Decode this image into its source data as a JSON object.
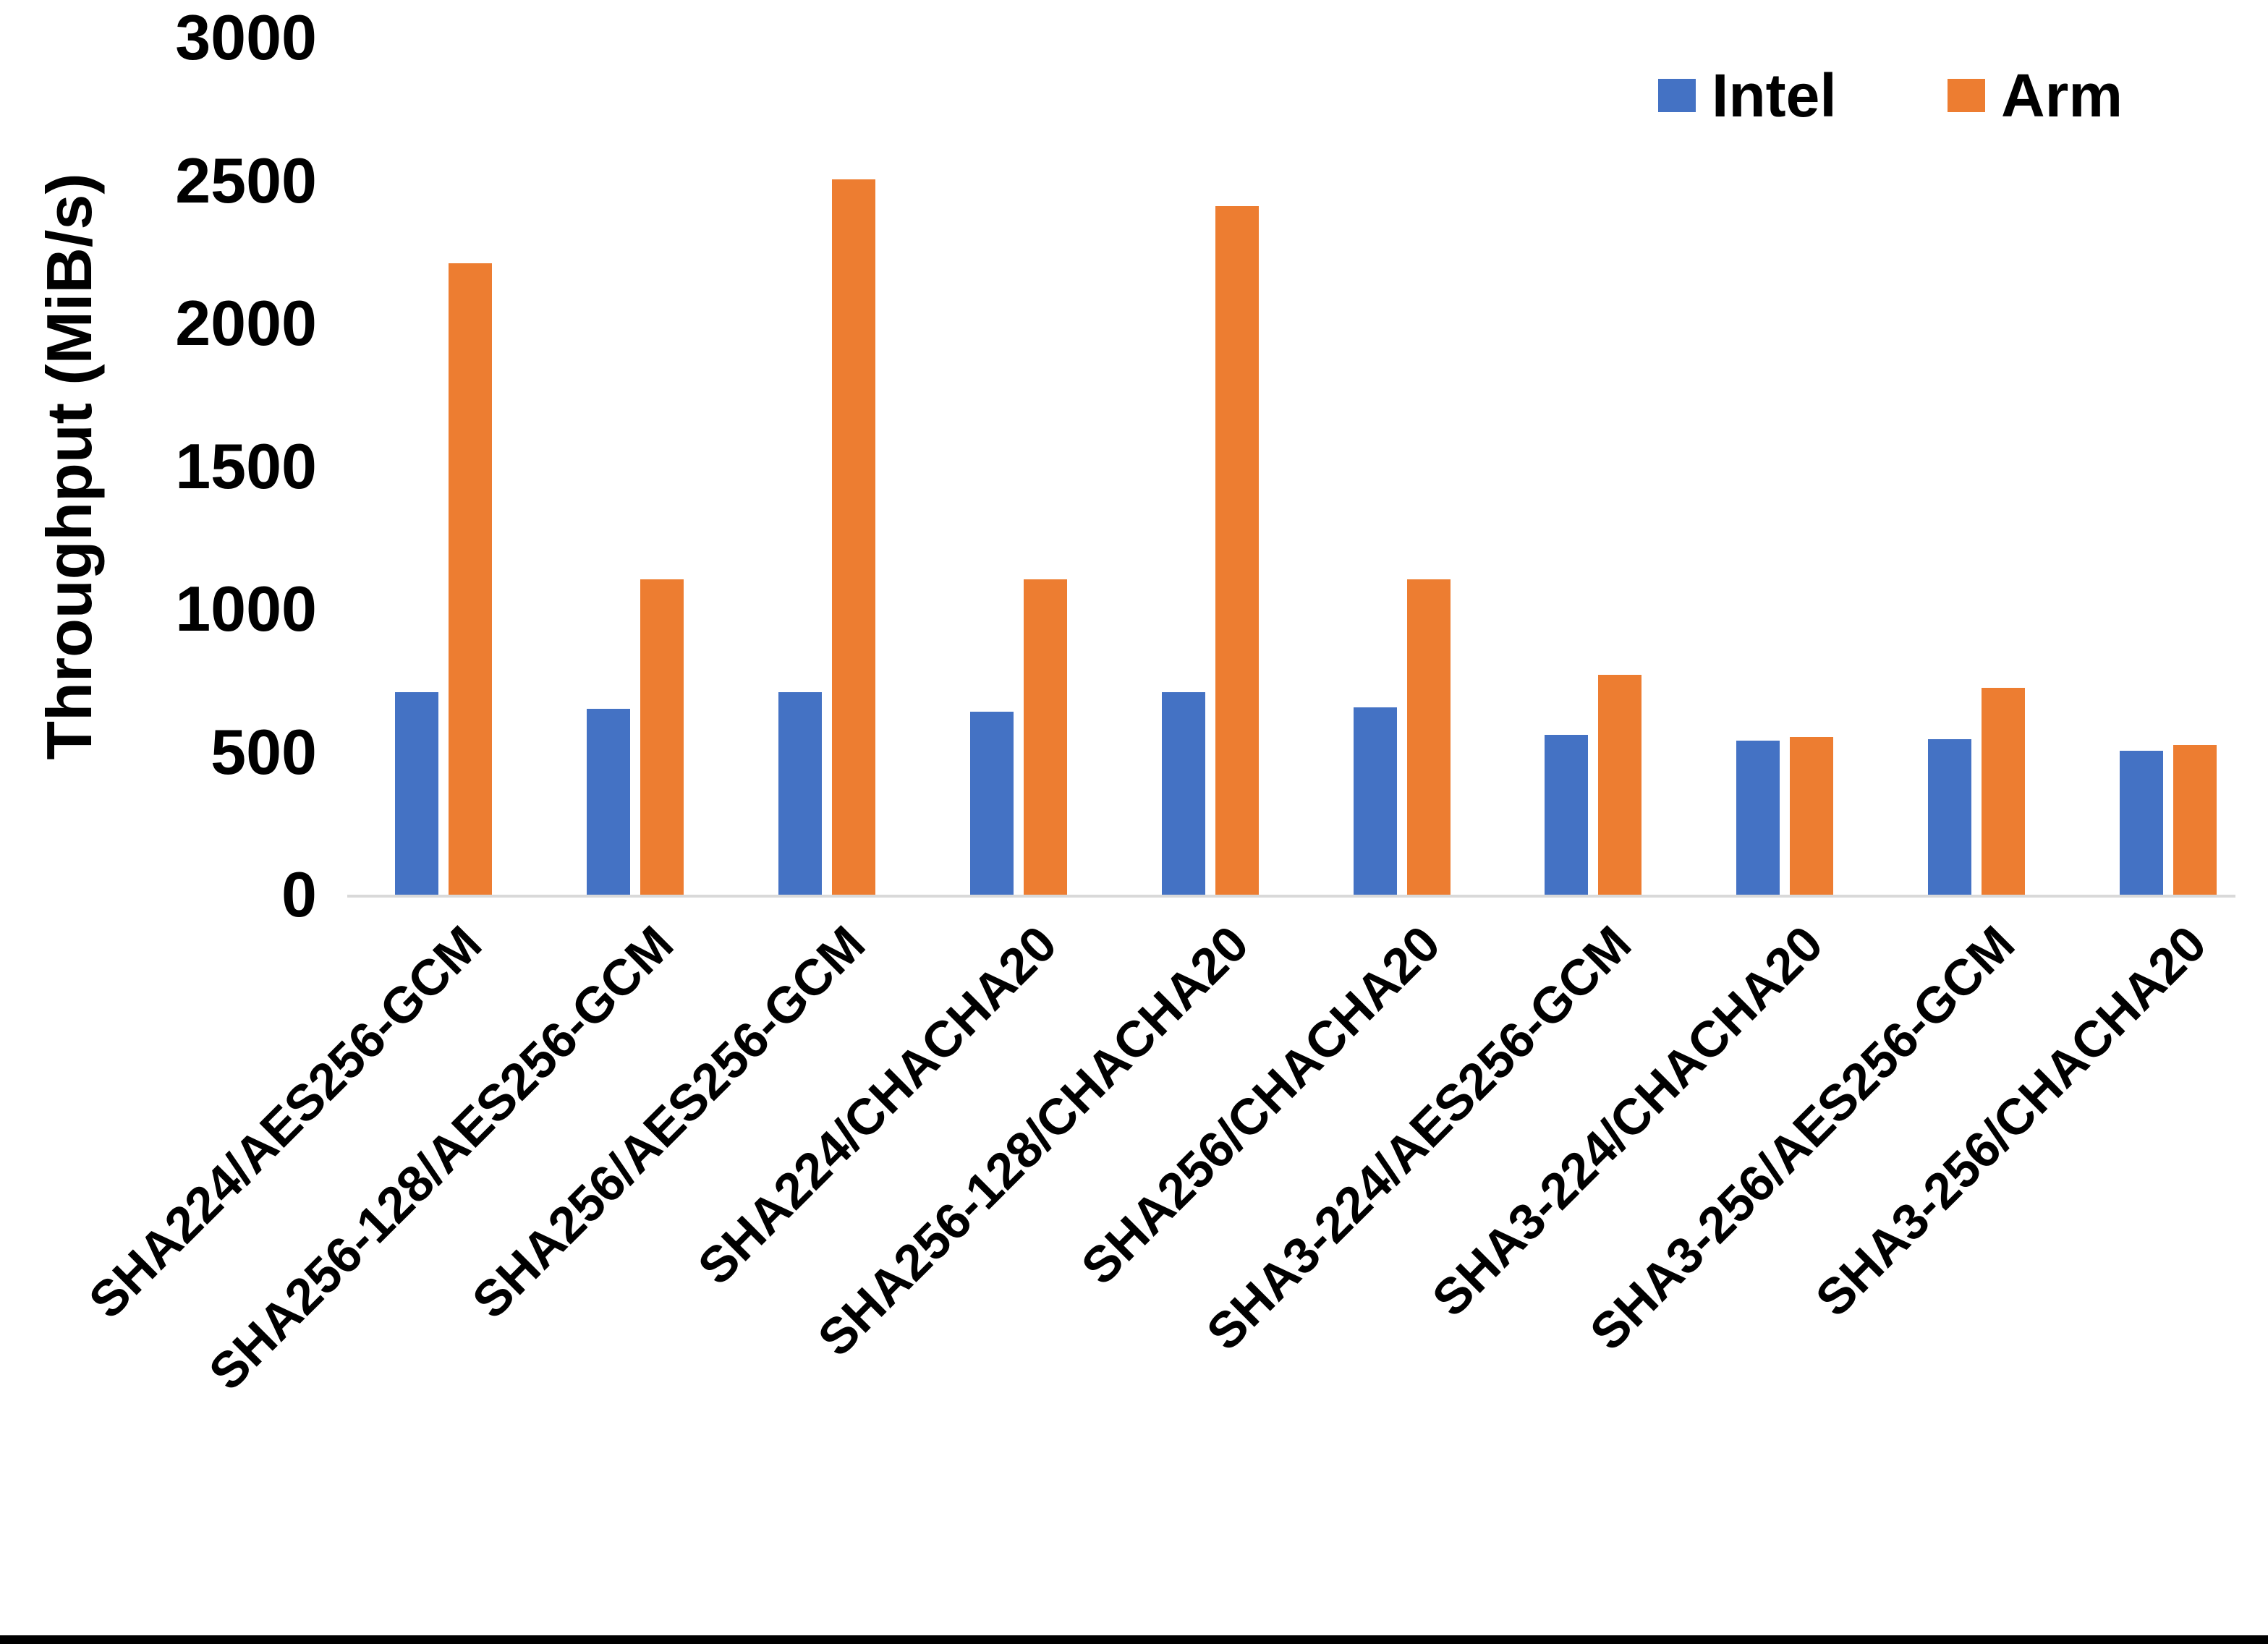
{
  "chart_data": {
    "type": "bar",
    "title": "",
    "xlabel": "",
    "ylabel": "Throughput (MiB/s)",
    "ylim": [
      0,
      3000
    ],
    "yticks": [
      3000,
      2500,
      2000,
      1500,
      1000,
      500,
      0
    ],
    "grid": false,
    "legend_position": "top-right",
    "categories": [
      "SHA224/AES256-GCM",
      "SHA256-128/AES256-GCM",
      "SHA256/AES256-GCM",
      "SHA224/CHACHA20",
      "SHA256-128/CHACHA20",
      "SHA256/CHACHA20",
      "SHA3-224/AES256-GCM",
      "SHA3-224/CHACHA20",
      "SHA3-256/AES256-GCM",
      "SHA3-256/CHACHA20"
    ],
    "series": [
      {
        "name": "Intel",
        "color": "#4472C4",
        "values": [
          710,
          650,
          710,
          640,
          710,
          655,
          560,
          540,
          545,
          505
        ]
      },
      {
        "name": "Arm",
        "color": "#ED7D31",
        "values": [
          2210,
          1105,
          2505,
          1105,
          2410,
          1105,
          770,
          552,
          725,
          525
        ]
      }
    ]
  },
  "legend": {
    "intel_label": "Intel",
    "arm_label": "Arm"
  },
  "colors": {
    "axis_line": "#d9d9d9",
    "text": "#000000",
    "background": "#ffffff",
    "bottom_bar": "#000000"
  }
}
